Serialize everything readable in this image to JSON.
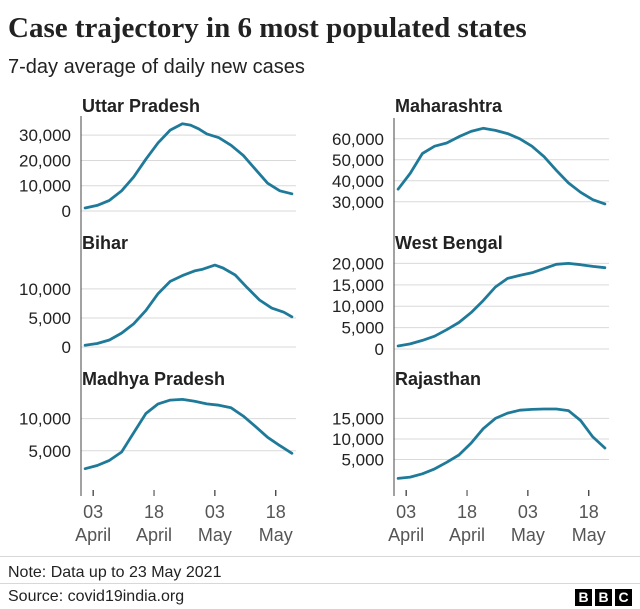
{
  "title": "Case trajectory in 6 most populated states",
  "subtitle": "7-day average of daily new cases",
  "note": "Note: Data up to 23 May 2021",
  "source": "Source: covid19india.org",
  "logo": [
    "B",
    "B",
    "C"
  ],
  "colors": {
    "line": "#1f7a9a",
    "grid": "#d9d9d9",
    "axis": "#444444",
    "text": "#222222"
  },
  "chart_data": [
    {
      "type": "line",
      "title": "Uttar Pradesh",
      "xlabel": "",
      "ylabel": "",
      "x_ticks": [
        {
          "day": 3,
          "line1": "03",
          "line2": "April"
        },
        {
          "day": 18,
          "line1": "18",
          "line2": "April"
        },
        {
          "day": 33,
          "line1": "03",
          "line2": "May"
        },
        {
          "day": 48,
          "line1": "18",
          "line2": "May"
        }
      ],
      "ylim": [
        0,
        36000
      ],
      "y_ticks": [
        {
          "value": 0,
          "label": "0"
        },
        {
          "value": 10000,
          "label": "10,000"
        },
        {
          "value": 20000,
          "label": "20,000"
        },
        {
          "value": 30000,
          "label": "30,000"
        }
      ],
      "x": [
        1,
        4,
        7,
        10,
        13,
        16,
        19,
        22,
        25,
        27,
        29,
        31,
        34,
        37,
        40,
        43,
        46,
        49,
        52
      ],
      "values": [
        1200,
        2200,
        4200,
        8000,
        13500,
        20500,
        27000,
        32000,
        34500,
        34000,
        32500,
        30500,
        29000,
        26000,
        22000,
        16500,
        11000,
        8000,
        6800
      ]
    },
    {
      "type": "line",
      "title": "Maharashtra",
      "xlabel": "",
      "ylabel": "",
      "x_ticks": [
        {
          "day": 3,
          "line1": "03",
          "line2": "April"
        },
        {
          "day": 18,
          "line1": "18",
          "line2": "April"
        },
        {
          "day": 33,
          "line1": "03",
          "line2": "May"
        },
        {
          "day": 48,
          "line1": "18",
          "line2": "May"
        }
      ],
      "ylim": [
        28000,
        68000
      ],
      "y_ticks": [
        {
          "value": 30000,
          "label": "30,000"
        },
        {
          "value": 40000,
          "label": "40,000"
        },
        {
          "value": 50000,
          "label": "50,000"
        },
        {
          "value": 60000,
          "label": "60,000"
        }
      ],
      "x": [
        1,
        4,
        7,
        10,
        13,
        16,
        19,
        22,
        25,
        28,
        31,
        34,
        37,
        40,
        43,
        46,
        49,
        52
      ],
      "values": [
        36000,
        43500,
        53000,
        56500,
        58000,
        61000,
        63500,
        65000,
        64000,
        62500,
        60000,
        56500,
        51500,
        45000,
        39000,
        34500,
        31000,
        29000
      ]
    },
    {
      "type": "line",
      "title": "Bihar",
      "xlabel": "",
      "ylabel": "",
      "x_ticks": [
        {
          "day": 3,
          "line1": "03",
          "line2": "April"
        },
        {
          "day": 18,
          "line1": "18",
          "line2": "April"
        },
        {
          "day": 33,
          "line1": "03",
          "line2": "May"
        },
        {
          "day": 48,
          "line1": "18",
          "line2": "May"
        }
      ],
      "ylim": [
        0,
        15500
      ],
      "y_ticks": [
        {
          "value": 0,
          "label": "0"
        },
        {
          "value": 5000,
          "label": "5,000"
        },
        {
          "value": 10000,
          "label": "10,000"
        }
      ],
      "x": [
        1,
        4,
        7,
        10,
        13,
        16,
        19,
        22,
        25,
        28,
        30,
        33,
        35,
        38,
        41,
        44,
        47,
        50,
        52
      ],
      "values": [
        300,
        600,
        1200,
        2400,
        4000,
        6300,
        9200,
        11300,
        12300,
        13100,
        13400,
        14100,
        13600,
        12400,
        10200,
        8100,
        6700,
        6000,
        5200
      ]
    },
    {
      "type": "line",
      "title": "West Bengal",
      "xlabel": "",
      "ylabel": "",
      "x_ticks": [
        {
          "day": 3,
          "line1": "03",
          "line2": "April"
        },
        {
          "day": 18,
          "line1": "18",
          "line2": "April"
        },
        {
          "day": 33,
          "line1": "03",
          "line2": "May"
        },
        {
          "day": 48,
          "line1": "18",
          "line2": "May"
        }
      ],
      "ylim": [
        0,
        21500
      ],
      "y_ticks": [
        {
          "value": 0,
          "label": "0"
        },
        {
          "value": 5000,
          "label": "5,000"
        },
        {
          "value": 10000,
          "label": "10,000"
        },
        {
          "value": 15000,
          "label": "15,000"
        },
        {
          "value": 20000,
          "label": "20,000"
        }
      ],
      "x": [
        1,
        4,
        7,
        10,
        13,
        16,
        19,
        22,
        25,
        28,
        31,
        34,
        37,
        40,
        43,
        46,
        49,
        52
      ],
      "values": [
        700,
        1200,
        2000,
        3000,
        4500,
        6200,
        8500,
        11300,
        14500,
        16500,
        17200,
        17800,
        18800,
        19800,
        20000,
        19700,
        19300,
        19000
      ]
    },
    {
      "type": "line",
      "title": "Madhya Pradesh",
      "xlabel": "",
      "ylabel": "",
      "x_ticks": [
        {
          "day": 3,
          "line1": "03",
          "line2": "April"
        },
        {
          "day": 18,
          "line1": "18",
          "line2": "April"
        },
        {
          "day": 33,
          "line1": "03",
          "line2": "May"
        },
        {
          "day": 48,
          "line1": "18",
          "line2": "May"
        }
      ],
      "ylim": [
        2000,
        14000
      ],
      "y_ticks": [
        {
          "value": 5000,
          "label": "5,000"
        },
        {
          "value": 10000,
          "label": "10,000"
        }
      ],
      "x": [
        1,
        4,
        7,
        10,
        13,
        16,
        19,
        22,
        25,
        28,
        31,
        34,
        37,
        40,
        43,
        46,
        49,
        52
      ],
      "values": [
        2200,
        2700,
        3500,
        4800,
        7800,
        10800,
        12300,
        12900,
        13000,
        12700,
        12300,
        12100,
        11700,
        10400,
        8800,
        7100,
        5800,
        4600
      ]
    },
    {
      "type": "line",
      "title": "Rajasthan",
      "xlabel": "",
      "ylabel": "",
      "x_ticks": [
        {
          "day": 3,
          "line1": "03",
          "line2": "April"
        },
        {
          "day": 18,
          "line1": "18",
          "line2": "April"
        },
        {
          "day": 33,
          "line1": "03",
          "line2": "May"
        },
        {
          "day": 48,
          "line1": "18",
          "line2": "May"
        }
      ],
      "ylim": [
        0,
        19000
      ],
      "y_ticks": [
        {
          "value": 5000,
          "label": "5,000"
        },
        {
          "value": 10000,
          "label": "10,000"
        },
        {
          "value": 15000,
          "label": "15,000"
        }
      ],
      "x": [
        1,
        4,
        7,
        10,
        13,
        16,
        19,
        22,
        25,
        28,
        31,
        34,
        37,
        40,
        43,
        46,
        49,
        52
      ],
      "values": [
        400,
        700,
        1500,
        2700,
        4300,
        6100,
        9000,
        12500,
        15000,
        16300,
        17000,
        17200,
        17300,
        17300,
        16900,
        14500,
        10500,
        7800
      ]
    }
  ]
}
